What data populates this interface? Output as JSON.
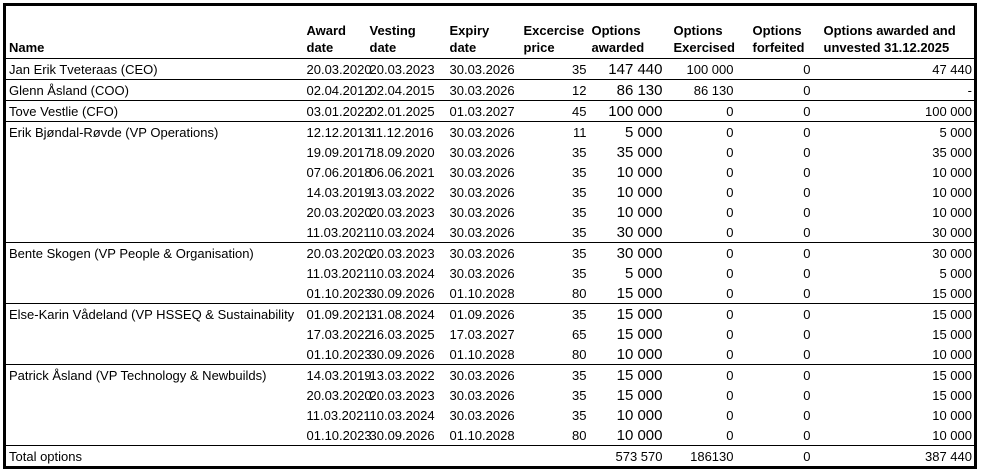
{
  "table": {
    "background": "#ffffff",
    "text_color": "#000000",
    "border_color": "#000000",
    "columns": [
      {
        "id": "name",
        "line1": "",
        "line2": "Name"
      },
      {
        "id": "award-date",
        "line1": "Award",
        "line2": "date"
      },
      {
        "id": "vesting-date",
        "line1": "Vesting",
        "line2": "date"
      },
      {
        "id": "expiry-date",
        "line1": "Expiry",
        "line2": "date"
      },
      {
        "id": "exercise-price",
        "line1": "Excercise",
        "line2": "price"
      },
      {
        "id": "options-awarded",
        "line1": "Options",
        "line2": "awarded"
      },
      {
        "id": "options-exercised",
        "line1": "Options",
        "line2": "Exercised"
      },
      {
        "id": "options-forfeited",
        "line1": "Options",
        "line2": "forfeited"
      },
      {
        "id": "options-awarded-unvested",
        "line1": "Options awarded and",
        "line2": "unvested 31.12.2025"
      }
    ],
    "groups": [
      {
        "name": "Jan Erik Tveteraas (CEO)",
        "rows": [
          {
            "award": "20.03.2020",
            "vesting": "20.03.2023",
            "expiry": "30.03.2026",
            "price": "35",
            "awarded": "147 440",
            "exercised": "100 000",
            "forfeited": "0",
            "unvested": "47 440"
          }
        ]
      },
      {
        "name": "Glenn Åsland (COO)",
        "rows": [
          {
            "award": "02.04.2012",
            "vesting": "02.04.2015",
            "expiry": "30.03.2026",
            "price": "12",
            "awarded": "86 130",
            "exercised": "86 130",
            "forfeited": "0",
            "unvested": "-"
          }
        ]
      },
      {
        "name": "Tove Vestlie (CFO)",
        "rows": [
          {
            "award": "03.01.2022",
            "vesting": "02.01.2025",
            "expiry": "01.03.2027",
            "price": "45",
            "awarded": "100 000",
            "exercised": "0",
            "forfeited": "0",
            "unvested": "100 000"
          }
        ]
      },
      {
        "name": "Erik Bjøndal-Røvde (VP Operations)",
        "rows": [
          {
            "award": "12.12.2013",
            "vesting": "11.12.2016",
            "expiry": "30.03.2026",
            "price": "11",
            "awarded": "5 000",
            "exercised": "0",
            "forfeited": "0",
            "unvested": "5 000"
          },
          {
            "award": "19.09.2017",
            "vesting": "18.09.2020",
            "expiry": "30.03.2026",
            "price": "35",
            "awarded": "35 000",
            "exercised": "0",
            "forfeited": "0",
            "unvested": "35 000"
          },
          {
            "award": "07.06.2018",
            "vesting": "06.06.2021",
            "expiry": "30.03.2026",
            "price": "35",
            "awarded": "10 000",
            "exercised": "0",
            "forfeited": "0",
            "unvested": "10 000"
          },
          {
            "award": "14.03.2019",
            "vesting": "13.03.2022",
            "expiry": "30.03.2026",
            "price": "35",
            "awarded": "10 000",
            "exercised": "0",
            "forfeited": "0",
            "unvested": "10 000"
          },
          {
            "award": "20.03.2020",
            "vesting": "20.03.2023",
            "expiry": "30.03.2026",
            "price": "35",
            "awarded": "10 000",
            "exercised": "0",
            "forfeited": "0",
            "unvested": "10 000"
          },
          {
            "award": "11.03.2021",
            "vesting": "10.03.2024",
            "expiry": "30.03.2026",
            "price": "35",
            "awarded": "30 000",
            "exercised": "0",
            "forfeited": "0",
            "unvested": "30 000"
          }
        ]
      },
      {
        "name": "Bente Skogen (VP People & Organisation)",
        "rows": [
          {
            "award": "20.03.2020",
            "vesting": "20.03.2023",
            "expiry": "30.03.2026",
            "price": "35",
            "awarded": "30 000",
            "exercised": "0",
            "forfeited": "0",
            "unvested": "30 000"
          },
          {
            "award": "11.03.2021",
            "vesting": "10.03.2024",
            "expiry": "30.03.2026",
            "price": "35",
            "awarded": "5 000",
            "exercised": "0",
            "forfeited": "0",
            "unvested": "5 000"
          },
          {
            "award": "01.10.2023",
            "vesting": "30.09.2026",
            "expiry": "01.10.2028",
            "price": "80",
            "awarded": "15 000",
            "exercised": "0",
            "forfeited": "0",
            "unvested": "15 000"
          }
        ]
      },
      {
        "name": "Else-Karin Vådeland (VP HSSEQ & Sustainability",
        "rows": [
          {
            "award": "01.09.2021",
            "vesting": "31.08.2024",
            "expiry": "01.09.2026",
            "price": "35",
            "awarded": "15 000",
            "exercised": "0",
            "forfeited": "0",
            "unvested": "15 000"
          },
          {
            "award": "17.03.2022",
            "vesting": "16.03.2025",
            "expiry": "17.03.2027",
            "price": "65",
            "awarded": "15 000",
            "exercised": "0",
            "forfeited": "0",
            "unvested": "15 000"
          },
          {
            "award": "01.10.2023",
            "vesting": "30.09.2026",
            "expiry": "01.10.2028",
            "price": "80",
            "awarded": "10 000",
            "exercised": "0",
            "forfeited": "0",
            "unvested": "10 000"
          }
        ]
      },
      {
        "name": "Patrick Åsland (VP Technology & Newbuilds)",
        "rows": [
          {
            "award": "14.03.2019",
            "vesting": "13.03.2022",
            "expiry": "30.03.2026",
            "price": "35",
            "awarded": "15 000",
            "exercised": "0",
            "forfeited": "0",
            "unvested": "15 000"
          },
          {
            "award": "20.03.2020",
            "vesting": "20.03.2023",
            "expiry": "30.03.2026",
            "price": "35",
            "awarded": "15 000",
            "exercised": "0",
            "forfeited": "0",
            "unvested": "15 000"
          },
          {
            "award": "11.03.2021",
            "vesting": "10.03.2024",
            "expiry": "30.03.2026",
            "price": "35",
            "awarded": "10 000",
            "exercised": "0",
            "forfeited": "0",
            "unvested": "10 000"
          },
          {
            "award": "01.10.2023",
            "vesting": "30.09.2026",
            "expiry": "01.10.2028",
            "price": "80",
            "awarded": "10 000",
            "exercised": "0",
            "forfeited": "0",
            "unvested": "10 000"
          }
        ]
      }
    ],
    "total": {
      "label": "Total options",
      "award": "",
      "vesting": "",
      "expiry": "",
      "price": "",
      "awarded": "573 570",
      "exercised": "186130",
      "forfeited": "0",
      "unvested": "387 440"
    }
  }
}
